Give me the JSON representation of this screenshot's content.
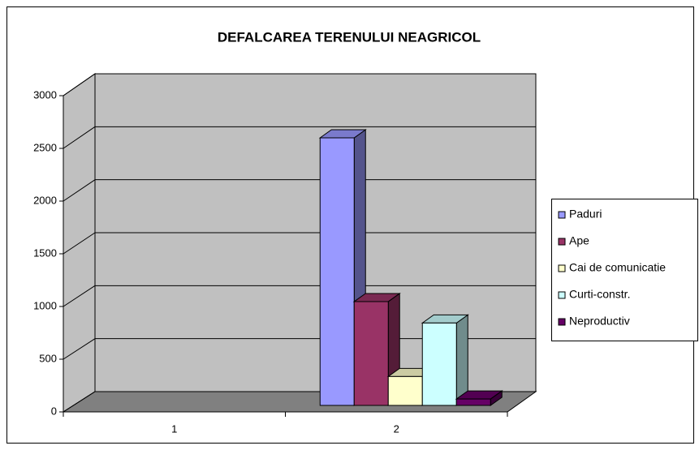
{
  "chart_data": {
    "type": "bar3d",
    "title": "DEFALCAREA TERENULUI NEAGRICOL",
    "categories": [
      "1",
      "2"
    ],
    "series": [
      {
        "name": "Paduri",
        "color": "#9999ff",
        "values": [
          null,
          2500
        ]
      },
      {
        "name": "Ape",
        "color": "#993366",
        "values": [
          null,
          970
        ]
      },
      {
        "name": "Cai de comunicatie",
        "color": "#ffffcc",
        "values": [
          null,
          270
        ]
      },
      {
        "name": "Curti-constr.",
        "color": "#ccffff",
        "values": [
          null,
          770
        ]
      },
      {
        "name": "Neproductiv",
        "color": "#660066",
        "values": [
          null,
          60
        ]
      }
    ],
    "ylim": [
      0,
      3000
    ],
    "yticks": [
      0,
      500,
      1000,
      1500,
      2000,
      2500,
      3000
    ],
    "grid": true,
    "legend": "right"
  }
}
